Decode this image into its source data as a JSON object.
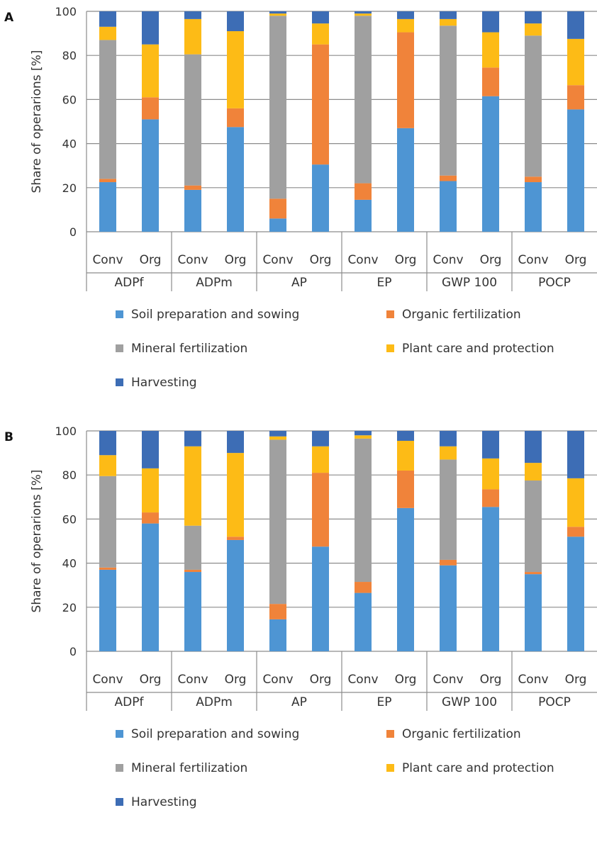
{
  "chart_data": [
    {
      "type": "bar",
      "stacked": true,
      "panel_label": "A",
      "ylabel": "Share of operarions [%]",
      "ylim": [
        0,
        100
      ],
      "yticks": [
        0,
        20,
        40,
        60,
        80,
        100
      ],
      "grid": true,
      "legend_position": "bottom",
      "groups": [
        "ADPf",
        "ADPm",
        "AP",
        "EP",
        "GWP 100",
        "POCP"
      ],
      "subcategories": [
        "Conv",
        "Org"
      ],
      "series": [
        {
          "name": "Soil preparation and  sowing",
          "color": "#4e95d3",
          "values": [
            22.5,
            51,
            19,
            47.5,
            6,
            30.5,
            14.5,
            47,
            23,
            61.5,
            22.5,
            55.5
          ]
        },
        {
          "name": "Organic fertilization",
          "color": "#f0833a",
          "values": [
            1.5,
            10,
            2,
            8.5,
            9,
            54.5,
            7.5,
            43.5,
            2.5,
            13,
            2.5,
            11
          ]
        },
        {
          "name": "Mineral fertilization",
          "color": "#a0a0a0",
          "values": [
            63,
            0,
            59.5,
            0,
            83,
            0,
            76,
            0,
            68,
            0,
            64,
            0
          ]
        },
        {
          "name": "Plant care and protection",
          "color": "#fdbb16",
          "values": [
            6,
            24,
            16,
            35,
            1,
            9.5,
            1,
            6,
            3,
            16,
            5.5,
            21
          ]
        },
        {
          "name": "Harvesting",
          "color": "#3d6db5",
          "values": [
            7,
            15,
            3.5,
            9,
            1,
            5.5,
            1,
            3.5,
            3.5,
            9.5,
            5.5,
            12.5
          ]
        }
      ]
    },
    {
      "type": "bar",
      "stacked": true,
      "panel_label": "B",
      "ylabel": "Share of operarions [%]",
      "ylim": [
        0,
        100
      ],
      "yticks": [
        0,
        20,
        40,
        60,
        80,
        100
      ],
      "grid": true,
      "legend_position": "bottom",
      "groups": [
        "ADPf",
        "ADPm",
        "AP",
        "EP",
        "GWP 100",
        "POCP"
      ],
      "subcategories": [
        "Conv",
        "Org"
      ],
      "series": [
        {
          "name": "Soil preparation and  sowing",
          "color": "#4e95d3",
          "values": [
            37,
            58,
            36,
            50.5,
            14.5,
            47.5,
            26.5,
            65,
            39,
            65.5,
            35,
            52
          ]
        },
        {
          "name": "Organic fertilization",
          "color": "#f0833a",
          "values": [
            1,
            5,
            1,
            1.5,
            7,
            33.5,
            5,
            17,
            2.5,
            8,
            1,
            4.5
          ]
        },
        {
          "name": "Mineral fertilization",
          "color": "#a0a0a0",
          "values": [
            41.5,
            0,
            20,
            0,
            74.5,
            0,
            65,
            0,
            45.5,
            0,
            41.5,
            0
          ]
        },
        {
          "name": "Plant care and protection",
          "color": "#fdbb16",
          "values": [
            9.5,
            20,
            36,
            38,
            1.5,
            12,
            1.5,
            13.5,
            6,
            14,
            8,
            22
          ]
        },
        {
          "name": "Harvesting",
          "color": "#3d6db5",
          "values": [
            11,
            17,
            7,
            10,
            2.5,
            7,
            2,
            4.5,
            7,
            12.5,
            14.5,
            21.5
          ]
        }
      ]
    }
  ]
}
